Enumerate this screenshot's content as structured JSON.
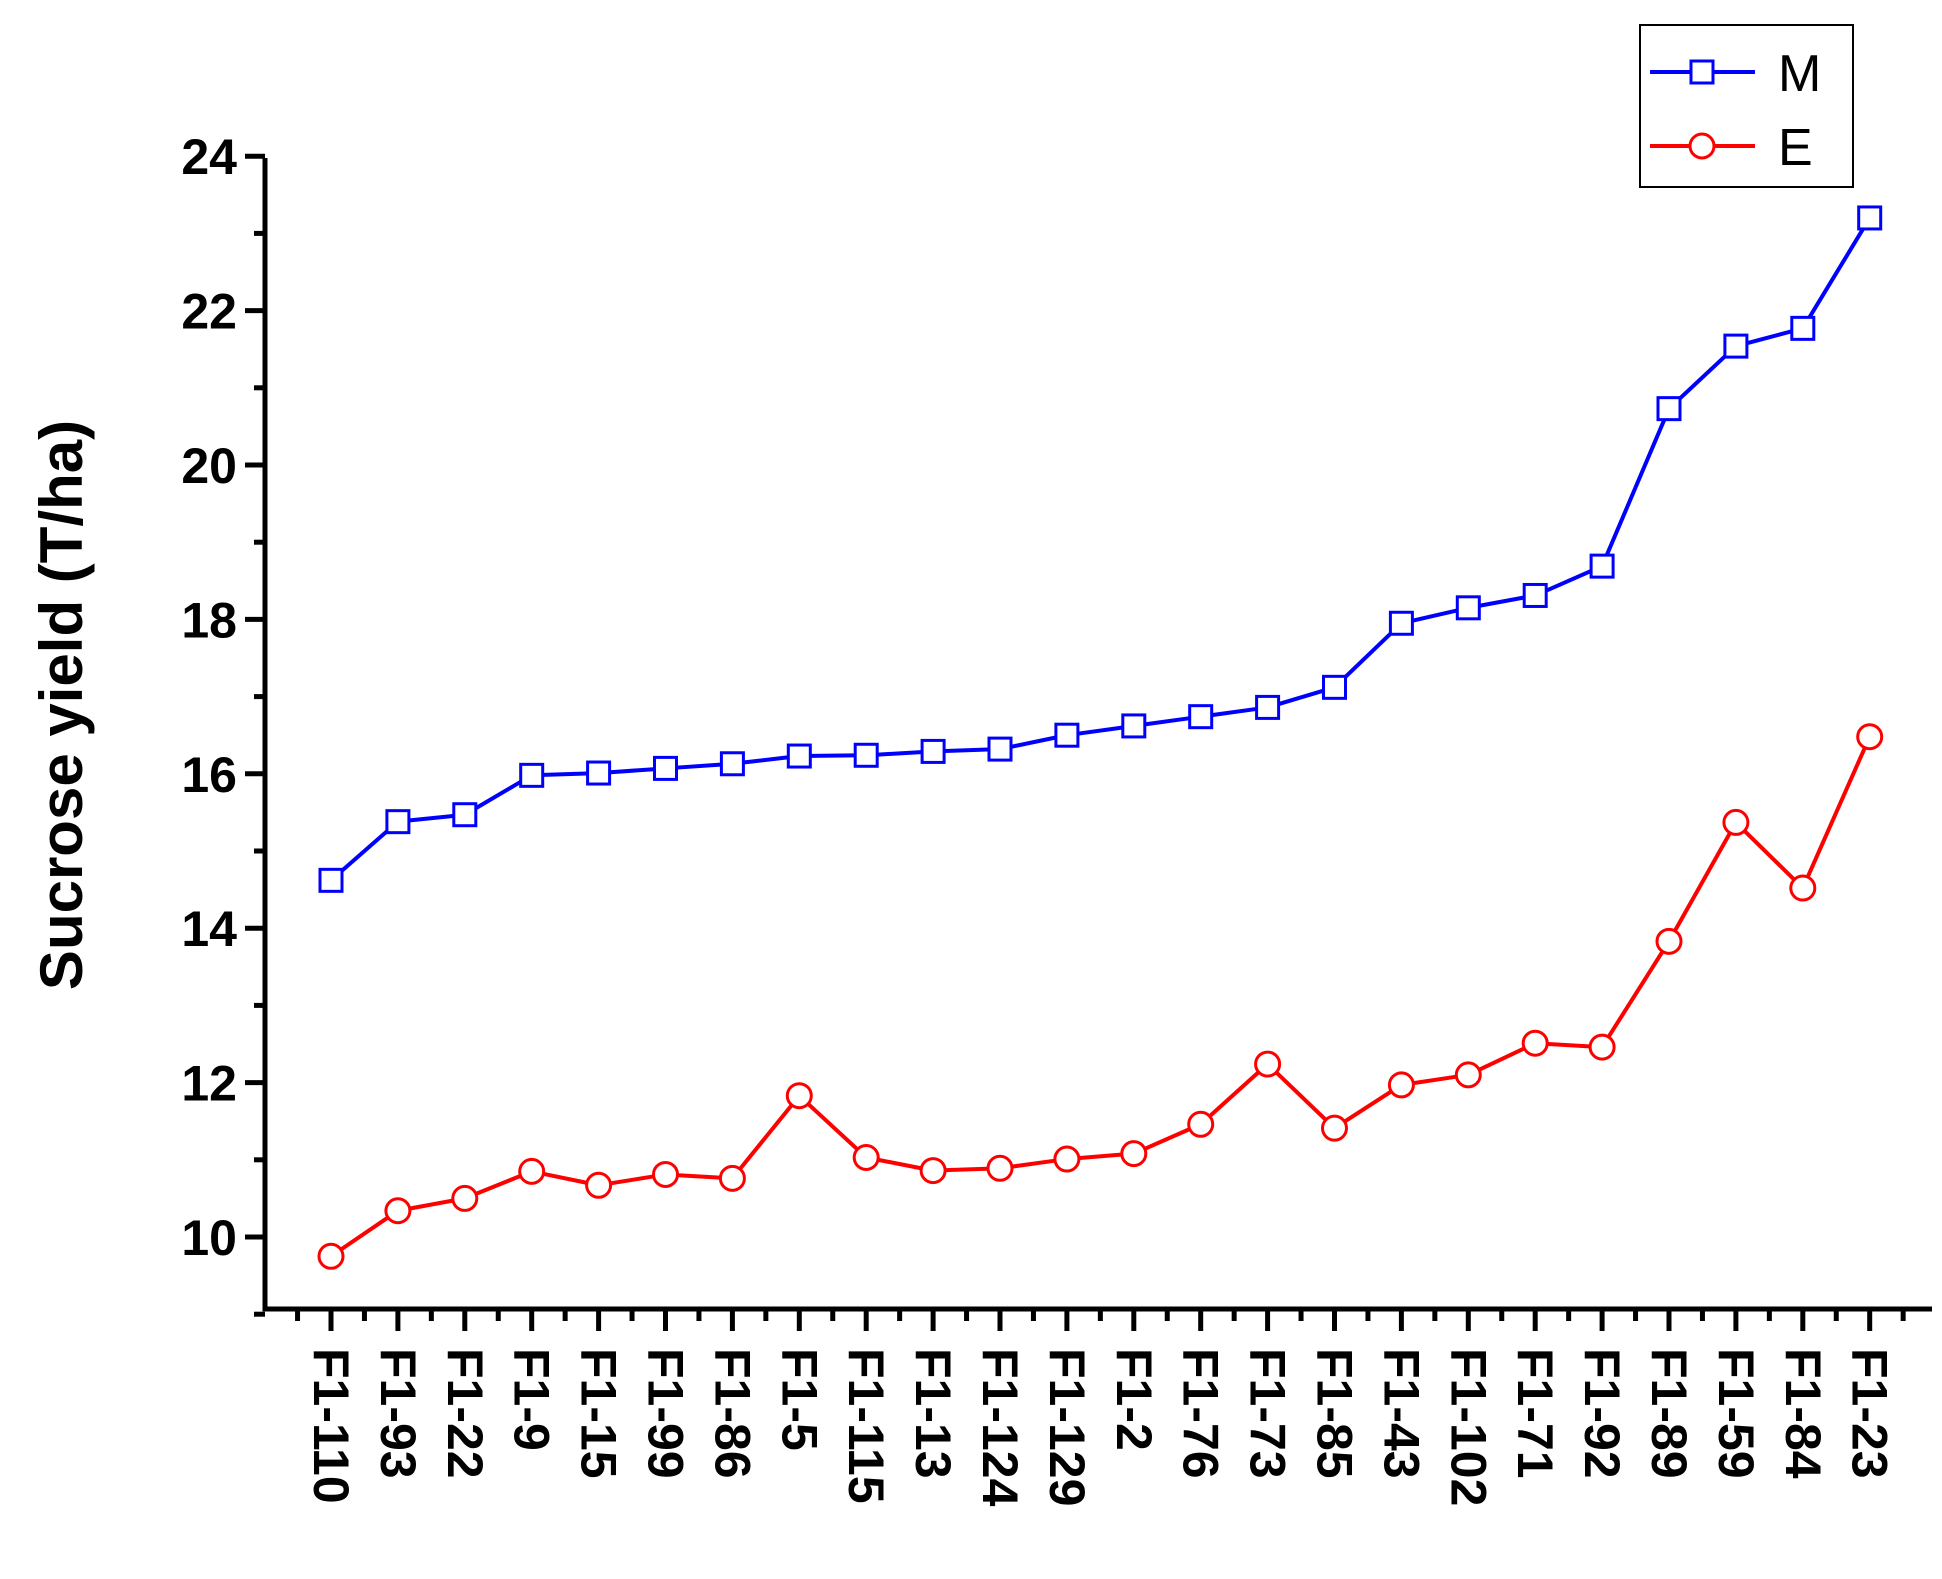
{
  "chart_data": {
    "type": "line",
    "title": "",
    "xlabel": "",
    "ylabel": "Sucrose yield (T/ha)",
    "ylim": [
      9,
      24
    ],
    "yticks": [
      10,
      12,
      14,
      16,
      18,
      20,
      22,
      24
    ],
    "grid": false,
    "legend_position": "top-right",
    "categories": [
      "F1-110",
      "F1-93",
      "F1-22",
      "F1-9",
      "F1-15",
      "F1-99",
      "F1-86",
      "F1-5",
      "F1-115",
      "F1-13",
      "F1-124",
      "F1-129",
      "F1-2",
      "F1-76",
      "F1-73",
      "F1-85",
      "F1-43",
      "F1-102",
      "F1-71",
      "F1-92",
      "F1-89",
      "F1-59",
      "F1-84",
      "F1-23"
    ],
    "series": [
      {
        "name": "M",
        "color": "#0000ff",
        "marker": "square",
        "values": [
          14.62,
          15.38,
          15.47,
          15.98,
          16.01,
          16.07,
          16.13,
          16.23,
          16.24,
          16.29,
          16.32,
          16.5,
          16.62,
          16.74,
          16.86,
          17.12,
          17.95,
          18.15,
          18.31,
          18.69,
          20.73,
          21.54,
          21.77,
          23.2
        ]
      },
      {
        "name": "E",
        "color": "#ff0000",
        "marker": "circle",
        "values": [
          9.75,
          10.34,
          10.5,
          10.85,
          10.67,
          10.81,
          10.76,
          11.83,
          11.03,
          10.86,
          10.89,
          11.01,
          11.08,
          11.46,
          12.24,
          11.41,
          11.97,
          12.1,
          12.51,
          12.46,
          13.83,
          15.37,
          14.52,
          16.48
        ]
      }
    ]
  }
}
